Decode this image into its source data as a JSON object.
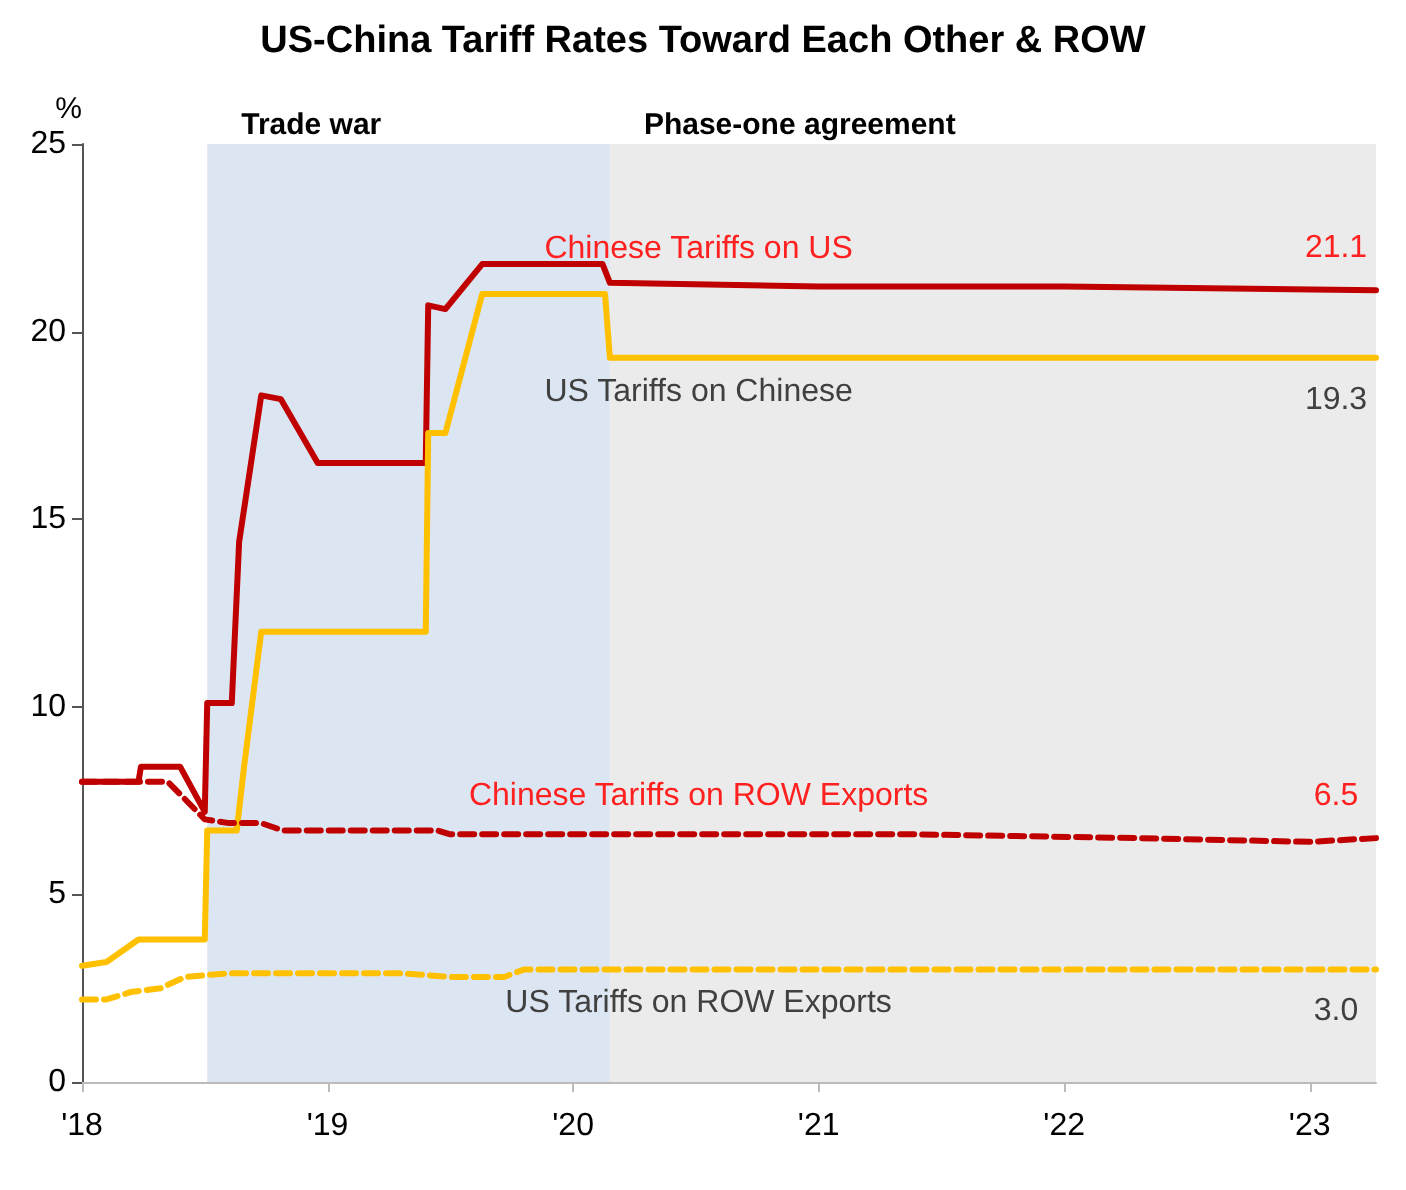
{
  "chart_data": {
    "type": "line",
    "title": "US-China Tariff Rates Toward Each Other & ROW",
    "ylabel": "%",
    "xlim": [
      2018,
      2023.27
    ],
    "xticks": [
      {
        "value": 2018,
        "label": "'18"
      },
      {
        "value": 2019,
        "label": "'19"
      },
      {
        "value": 2020,
        "label": "'20"
      },
      {
        "value": 2021,
        "label": "'21"
      },
      {
        "value": 2022,
        "label": "'22"
      },
      {
        "value": 2023,
        "label": "'23"
      }
    ],
    "ylim": [
      0,
      25
    ],
    "yticks": [
      0,
      5,
      10,
      15,
      20,
      25
    ],
    "grid": false,
    "legend": false,
    "marker": "none",
    "bands": [
      {
        "axis": "x",
        "from": 2018.51,
        "to": 2020.15,
        "label": "Trade war",
        "color": "#dce6f2"
      },
      {
        "axis": "x",
        "from": 2020.15,
        "to": 2023.27,
        "label": "Phase-one agreement",
        "color": "#ebebeb"
      }
    ],
    "series": [
      {
        "name": "Chinese Tariffs on US",
        "color": "#c00000",
        "line_style": "solid",
        "x": [
          2018,
          2018.23,
          2018.24,
          2018.4,
          2018.5,
          2018.51,
          2018.61,
          2018.64,
          2018.73,
          2018.81,
          2018.96,
          2019.4,
          2019.41,
          2019.48,
          2019.63,
          2020.12,
          2020.15,
          2021.0,
          2022.0,
          2023.27
        ],
        "values": [
          8.0,
          8.0,
          8.4,
          8.4,
          7.2,
          10.1,
          10.1,
          14.4,
          18.3,
          18.2,
          16.5,
          16.5,
          20.7,
          20.6,
          21.8,
          21.8,
          21.3,
          21.2,
          21.2,
          21.1
        ],
        "value_labels": [
          null,
          null,
          null,
          null,
          null,
          null,
          null,
          null,
          null,
          null,
          null,
          null,
          null,
          null,
          null,
          null,
          null,
          null,
          null,
          "21.1"
        ]
      },
      {
        "name": "US Tariffs on Chinese",
        "color": "#ffc000",
        "line_style": "solid",
        "x": [
          2018,
          2018.1,
          2018.23,
          2018.5,
          2018.51,
          2018.63,
          2018.66,
          2018.73,
          2019.4,
          2019.41,
          2019.48,
          2019.63,
          2020.13,
          2020.15,
          2021.0,
          2023.27
        ],
        "values": [
          3.1,
          3.2,
          3.8,
          3.8,
          6.7,
          6.7,
          8.4,
          12.0,
          12.0,
          17.3,
          17.3,
          21.0,
          21.0,
          19.3,
          19.3,
          19.3
        ],
        "value_labels": [
          null,
          null,
          null,
          null,
          null,
          null,
          null,
          null,
          null,
          null,
          null,
          null,
          null,
          null,
          null,
          "19.3"
        ]
      },
      {
        "name": "Chinese Tariffs on ROW Exports",
        "color": "#c00000",
        "line_style": "dashed",
        "x": [
          2018,
          2018.35,
          2018.5,
          2018.6,
          2018.73,
          2018.82,
          2019.45,
          2019.5,
          2021.0,
          2021.4,
          2022.3,
          2023.0,
          2023.27
        ],
        "values": [
          8.0,
          8.0,
          7.0,
          6.9,
          6.9,
          6.7,
          6.7,
          6.6,
          6.6,
          6.6,
          6.5,
          6.4,
          6.5
        ],
        "value_labels": [
          null,
          null,
          null,
          null,
          null,
          null,
          null,
          null,
          null,
          null,
          null,
          null,
          "6.5"
        ]
      },
      {
        "name": "US Tariffs on ROW Exports",
        "color": "#ffc000",
        "line_style": "dashed",
        "x": [
          2018,
          2018.1,
          2018.2,
          2018.32,
          2018.42,
          2018.6,
          2019.3,
          2019.5,
          2019.72,
          2019.8,
          2021.0,
          2023.27
        ],
        "values": [
          2.2,
          2.2,
          2.4,
          2.5,
          2.8,
          2.9,
          2.9,
          2.8,
          2.8,
          3.0,
          3.0,
          3.0
        ],
        "value_labels": [
          null,
          null,
          null,
          null,
          null,
          null,
          null,
          null,
          null,
          null,
          null,
          "3.0"
        ]
      }
    ]
  }
}
